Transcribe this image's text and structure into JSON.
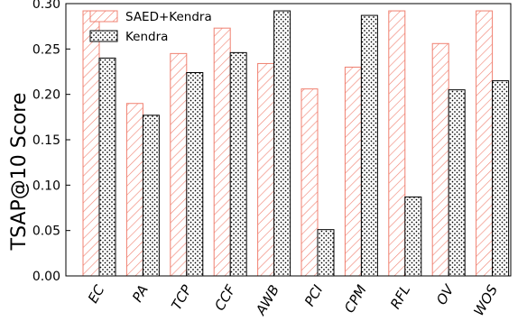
{
  "chart_data": {
    "type": "bar",
    "title": "",
    "xlabel": "",
    "ylabel": "TSAP@10 Score",
    "ylim": [
      0,
      0.3
    ],
    "yticks": [
      "0.00",
      "0.05",
      "0.10",
      "0.15",
      "0.20",
      "0.25",
      "0.30"
    ],
    "categories": [
      "EC",
      "PA",
      "TCP",
      "CCF",
      "AWB",
      "PCI",
      "CPM",
      "RFL",
      "OV",
      "WOS"
    ],
    "series": [
      {
        "name": "SAED+Kendra",
        "values": [
          0.292,
          0.19,
          0.245,
          0.273,
          0.234,
          0.206,
          0.23,
          0.292,
          0.256,
          0.292
        ],
        "color": "#f08070",
        "pattern": "diagonal-hatch"
      },
      {
        "name": "Kendra",
        "values": [
          0.24,
          0.177,
          0.224,
          0.246,
          0.292,
          0.051,
          0.287,
          0.087,
          0.205,
          0.215
        ],
        "color": "#000000",
        "pattern": "dots"
      }
    ],
    "legend_position": "top-left",
    "grid": false
  }
}
